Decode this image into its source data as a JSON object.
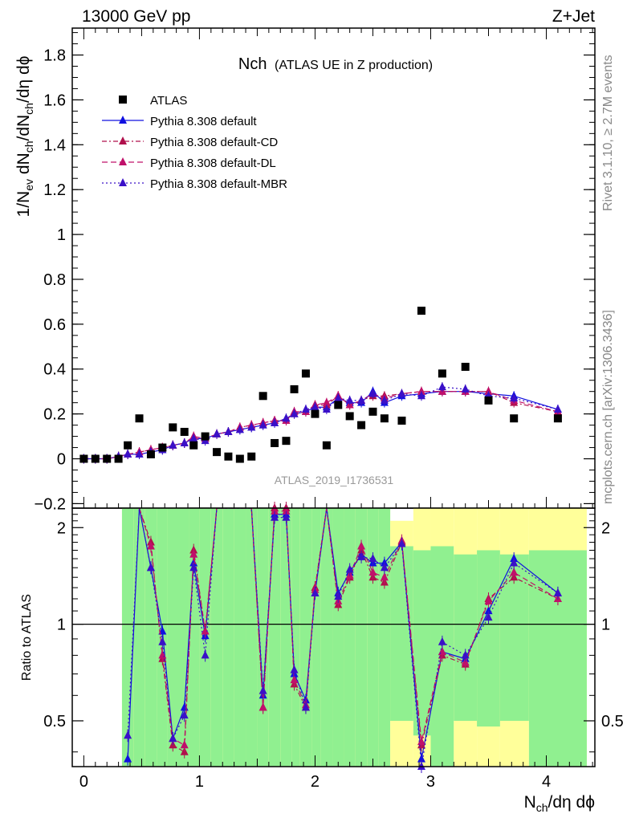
{
  "header": {
    "left": "13000 GeV pp",
    "right": "Z+Jet"
  },
  "side_labels": {
    "rivet": "Rivet 3.1.10, ≥ 2.7M events",
    "mcplots": "mcplots.cern.ch [arXiv:1306.3436]"
  },
  "title": {
    "main": "Nch",
    "sub": "(ATLAS UE in Z production)"
  },
  "watermark": "ATLAS_2019_I1736531",
  "axes": {
    "ylabel_main": "1/N_ev dN_ch/dN_ch/dη dϕ",
    "ylabel_ratio": "Ratio to ATLAS",
    "xlabel": "N_ch/dη dϕ"
  },
  "colors": {
    "data": "#000000",
    "default": "#1010e0",
    "cd": "#b0104c",
    "dl": "#c0106a",
    "mbr": "#3a10c8",
    "band_inner": "#90f090",
    "band_outer": "#ffff9a"
  },
  "chart_data": {
    "type": "scatter",
    "xlim": [
      -0.1,
      4.42
    ],
    "ylim": [
      -0.22,
      1.92
    ],
    "ratio_ylim": [
      0.36,
      2.3
    ],
    "ratio_scale": "log",
    "x_ticks": [
      0,
      1,
      2,
      3,
      4
    ],
    "y_ticks": [
      -0.2,
      0,
      0.2,
      0.4,
      0.6,
      0.8,
      1,
      1.2,
      1.4,
      1.6,
      1.8
    ],
    "ratio_ticks": [
      0.5,
      1,
      2
    ],
    "legend_position": "top-left",
    "data_series": {
      "name": "ATLAS",
      "x": [
        0.0,
        0.1,
        0.2,
        0.3,
        0.38,
        0.48,
        0.58,
        0.68,
        0.77,
        0.87,
        0.95,
        1.05,
        1.15,
        1.25,
        1.35,
        1.45,
        1.55,
        1.65,
        1.75,
        1.82,
        1.92,
        2.0,
        2.1,
        2.2,
        2.3,
        2.4,
        2.5,
        2.6,
        2.75,
        2.92,
        3.1,
        3.3,
        3.5,
        3.72,
        4.1
      ],
      "y": [
        0.0,
        0.0,
        0.0,
        0.0,
        0.06,
        0.18,
        0.02,
        0.05,
        0.14,
        0.12,
        0.06,
        0.1,
        0.03,
        0.01,
        0.0,
        0.01,
        0.28,
        0.07,
        0.08,
        0.31,
        0.38,
        0.2,
        0.06,
        0.24,
        0.19,
        0.15,
        0.21,
        0.18,
        0.17,
        0.66,
        0.38,
        0.41,
        0.26,
        0.18,
        0.18
      ]
    },
    "series": [
      {
        "name": "Pythia 8.308 default",
        "style": "solid",
        "x": [
          0.0,
          0.1,
          0.2,
          0.3,
          0.38,
          0.48,
          0.58,
          0.68,
          0.77,
          0.87,
          0.95,
          1.05,
          1.15,
          1.25,
          1.35,
          1.45,
          1.55,
          1.65,
          1.75,
          1.82,
          1.92,
          2.0,
          2.1,
          2.2,
          2.3,
          2.4,
          2.5,
          2.6,
          2.75,
          2.92,
          3.1,
          3.3,
          3.5,
          3.72,
          4.1
        ],
        "y": [
          0.0,
          0.0,
          0.0,
          0.01,
          0.02,
          0.02,
          0.03,
          0.04,
          0.06,
          0.07,
          0.09,
          0.09,
          0.11,
          0.12,
          0.13,
          0.14,
          0.15,
          0.16,
          0.18,
          0.2,
          0.21,
          0.23,
          0.23,
          0.27,
          0.25,
          0.25,
          0.3,
          0.25,
          0.28,
          0.29,
          0.3,
          0.3,
          0.29,
          0.28,
          0.22
        ],
        "ratio": [
          null,
          null,
          null,
          null,
          0.38,
          3.0,
          1.5,
          0.95,
          0.44,
          0.55,
          1.55,
          0.92,
          3.0,
          3.0,
          3.0,
          3.0,
          0.6,
          2.2,
          2.2,
          0.7,
          0.58,
          1.25,
          3.0,
          1.25,
          1.45,
          1.65,
          1.55,
          1.55,
          1.8,
          0.38,
          0.82,
          0.78,
          1.1,
          1.6,
          1.25
        ]
      },
      {
        "name": "Pythia 8.308 default-CD",
        "style": "dash-dot",
        "x": [
          0.0,
          0.1,
          0.2,
          0.3,
          0.38,
          0.48,
          0.58,
          0.68,
          0.77,
          0.87,
          0.95,
          1.05,
          1.15,
          1.25,
          1.35,
          1.45,
          1.55,
          1.65,
          1.75,
          1.82,
          1.92,
          2.0,
          2.1,
          2.2,
          2.3,
          2.4,
          2.5,
          2.6,
          2.75,
          2.92,
          3.1,
          3.3,
          3.5,
          3.72,
          4.1
        ],
        "y": [
          0.0,
          0.0,
          0.0,
          0.01,
          0.02,
          0.03,
          0.04,
          0.05,
          0.06,
          0.07,
          0.09,
          0.09,
          0.11,
          0.12,
          0.14,
          0.15,
          0.16,
          0.17,
          0.17,
          0.2,
          0.21,
          0.24,
          0.24,
          0.28,
          0.24,
          0.26,
          0.28,
          0.28,
          0.29,
          0.3,
          0.3,
          0.3,
          0.3,
          0.25,
          0.21
        ],
        "ratio": [
          null,
          null,
          null,
          null,
          null,
          3.0,
          1.8,
          0.78,
          0.42,
          0.4,
          1.7,
          0.95,
          3.0,
          3.0,
          3.0,
          3.0,
          0.55,
          2.3,
          2.3,
          0.65,
          0.55,
          1.3,
          3.0,
          1.15,
          1.4,
          1.7,
          1.4,
          1.35,
          1.8,
          0.42,
          0.8,
          0.75,
          1.2,
          1.4,
          1.2
        ]
      },
      {
        "name": "Pythia 8.308 default-DL",
        "style": "dashed",
        "x": [
          0.0,
          0.1,
          0.2,
          0.3,
          0.38,
          0.48,
          0.58,
          0.68,
          0.77,
          0.87,
          0.95,
          1.05,
          1.15,
          1.25,
          1.35,
          1.45,
          1.55,
          1.65,
          1.75,
          1.82,
          1.92,
          2.0,
          2.1,
          2.2,
          2.3,
          2.4,
          2.5,
          2.6,
          2.75,
          2.92,
          3.1,
          3.3,
          3.5,
          3.72,
          4.1
        ],
        "y": [
          0.0,
          0.0,
          0.0,
          0.01,
          0.02,
          0.03,
          0.04,
          0.05,
          0.06,
          0.07,
          0.1,
          0.09,
          0.11,
          0.12,
          0.14,
          0.15,
          0.16,
          0.17,
          0.17,
          0.21,
          0.21,
          0.24,
          0.25,
          0.28,
          0.24,
          0.26,
          0.29,
          0.27,
          0.29,
          0.3,
          0.3,
          0.3,
          0.3,
          0.26,
          0.21
        ],
        "ratio": [
          null,
          null,
          null,
          null,
          null,
          3.0,
          1.75,
          0.8,
          0.44,
          0.42,
          1.65,
          0.95,
          3.0,
          3.0,
          3.0,
          3.0,
          0.55,
          2.25,
          2.25,
          0.67,
          0.56,
          1.28,
          3.0,
          1.18,
          1.42,
          1.75,
          1.45,
          1.4,
          1.82,
          0.43,
          0.82,
          0.76,
          1.18,
          1.45,
          1.2
        ]
      },
      {
        "name": "Pythia 8.308 default-MBR",
        "style": "dotted",
        "x": [
          0.0,
          0.1,
          0.2,
          0.3,
          0.38,
          0.48,
          0.58,
          0.68,
          0.77,
          0.87,
          0.95,
          1.05,
          1.15,
          1.25,
          1.35,
          1.45,
          1.55,
          1.65,
          1.75,
          1.82,
          1.92,
          2.0,
          2.1,
          2.2,
          2.3,
          2.4,
          2.5,
          2.6,
          2.75,
          2.92,
          3.1,
          3.3,
          3.5,
          3.72,
          4.1
        ],
        "y": [
          0.0,
          0.0,
          0.0,
          0.01,
          0.02,
          0.02,
          0.03,
          0.04,
          0.06,
          0.07,
          0.09,
          0.08,
          0.11,
          0.12,
          0.13,
          0.14,
          0.15,
          0.16,
          0.18,
          0.2,
          0.22,
          0.23,
          0.22,
          0.27,
          0.26,
          0.26,
          0.29,
          0.26,
          0.29,
          0.28,
          0.32,
          0.31,
          0.28,
          0.27,
          0.22
        ],
        "ratio": [
          null,
          null,
          null,
          null,
          0.45,
          3.0,
          1.5,
          0.88,
          0.44,
          0.52,
          1.5,
          0.8,
          3.0,
          3.0,
          3.0,
          3.0,
          0.62,
          2.15,
          2.15,
          0.72,
          0.55,
          1.25,
          3.0,
          1.22,
          1.48,
          1.62,
          1.6,
          1.5,
          1.78,
          0.36,
          0.88,
          0.8,
          1.05,
          1.55,
          1.25
        ]
      }
    ],
    "ratio_bands": {
      "edges": [
        0.33,
        0.43,
        0.53,
        0.63,
        0.72,
        0.82,
        0.91,
        1.0,
        1.1,
        1.2,
        1.3,
        1.4,
        1.5,
        1.6,
        1.7,
        1.8,
        1.87,
        1.97,
        2.05,
        2.15,
        2.25,
        2.35,
        2.45,
        2.55,
        2.65,
        2.85,
        3.0,
        3.2,
        3.4,
        3.6,
        3.85,
        4.35
      ],
      "inner_low": [
        0.36,
        0.36,
        0.36,
        0.36,
        0.36,
        0.36,
        0.36,
        0.36,
        0.36,
        0.36,
        0.36,
        0.36,
        0.36,
        0.36,
        0.36,
        0.36,
        0.36,
        0.36,
        0.36,
        0.36,
        0.36,
        0.36,
        0.36,
        0.36,
        0.5,
        0.45,
        0.36,
        0.5,
        0.48,
        0.5,
        0.36
      ],
      "inner_high": [
        2.3,
        2.3,
        2.3,
        2.3,
        2.3,
        2.3,
        2.3,
        2.3,
        2.3,
        2.3,
        2.3,
        2.3,
        2.3,
        2.3,
        2.3,
        2.3,
        2.3,
        2.3,
        2.3,
        2.3,
        2.3,
        2.3,
        2.3,
        2.3,
        1.75,
        1.7,
        1.75,
        1.65,
        1.7,
        1.65,
        1.7
      ],
      "outer_low": [
        0.36,
        0.36,
        0.36,
        0.36,
        0.36,
        0.36,
        0.36,
        0.36,
        0.36,
        0.36,
        0.36,
        0.36,
        0.36,
        0.36,
        0.36,
        0.36,
        0.36,
        0.36,
        0.36,
        0.36,
        0.36,
        0.36,
        0.36,
        0.36,
        0.36,
        0.36,
        0.36,
        0.36,
        0.36,
        0.36,
        0.36
      ],
      "outer_high": [
        2.3,
        2.3,
        2.3,
        2.3,
        2.3,
        2.3,
        2.3,
        2.3,
        2.3,
        2.3,
        2.3,
        2.3,
        2.3,
        2.3,
        2.3,
        2.3,
        2.3,
        2.3,
        2.3,
        2.3,
        2.3,
        2.3,
        2.3,
        2.3,
        2.1,
        2.3,
        2.3,
        2.3,
        2.3,
        2.3,
        2.3
      ]
    }
  }
}
